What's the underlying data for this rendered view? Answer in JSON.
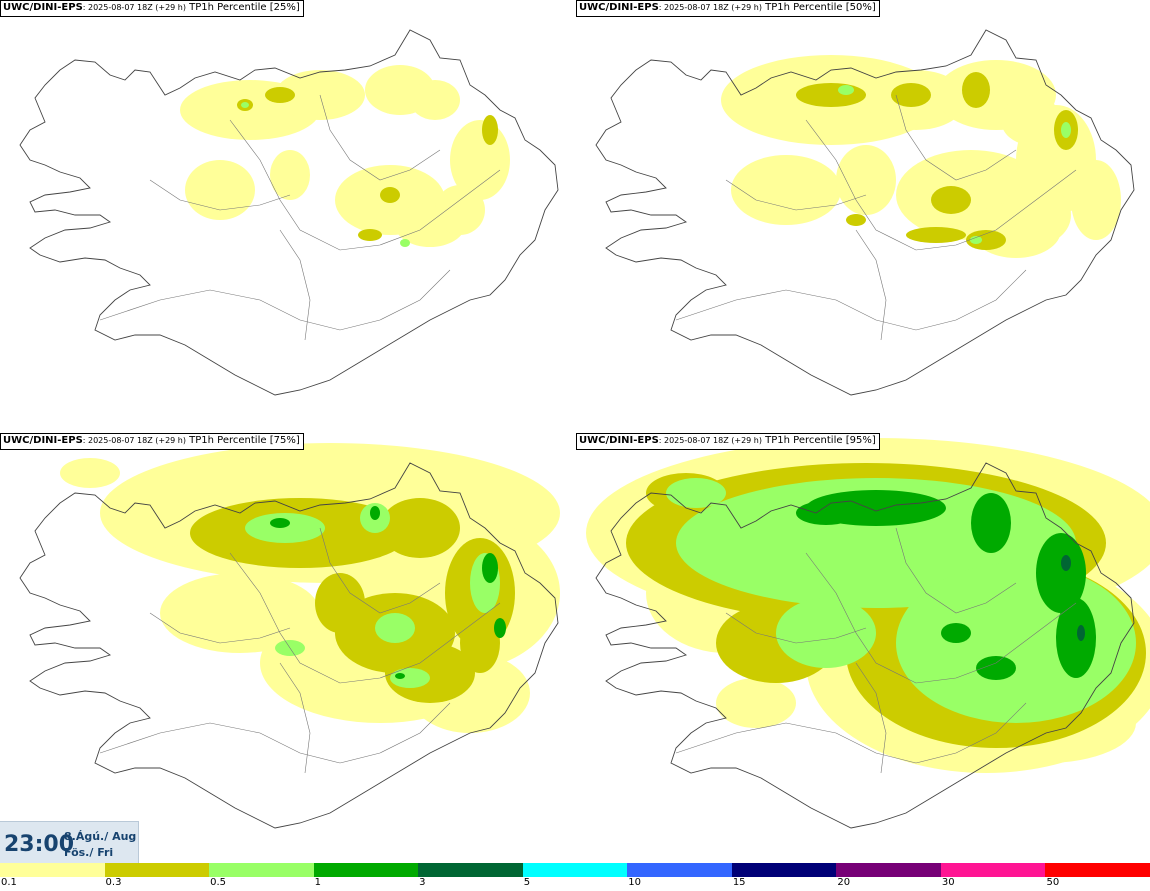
{
  "panels": [
    {
      "model": "UWC/DINI-EPS",
      "run": ": 2025-08-07 18Z (+29 h)",
      "field": " TP1h Percentile [25%]"
    },
    {
      "model": "UWC/DINI-EPS",
      "run": ": 2025-08-07 18Z (+29 h)",
      "field": " TP1h Percentile [50%]"
    },
    {
      "model": "UWC/DINI-EPS",
      "run": ": 2025-08-07 18Z (+29 h)",
      "field": " TP1h Percentile [75%]"
    },
    {
      "model": "UWC/DINI-EPS",
      "run": ": 2025-08-07 18Z (+29 h)",
      "field": " TP1h Percentile [95%]"
    }
  ],
  "valid_time": {
    "time": "23:00",
    "date_line1": "8.Ágú./ Aug",
    "date_line2": "Fös./ Fri"
  },
  "legend": {
    "colors": [
      "#ffff99",
      "#cccc00",
      "#99ff66",
      "#00aa00",
      "#006633",
      "#00ffff",
      "#3366ff",
      "#000077",
      "#770077",
      "#ff1493",
      "#ff0000"
    ],
    "labels": [
      "0.1",
      "0.3",
      "0.5",
      "1",
      "3",
      "5",
      "10",
      "15",
      "20",
      "30",
      "50"
    ]
  }
}
